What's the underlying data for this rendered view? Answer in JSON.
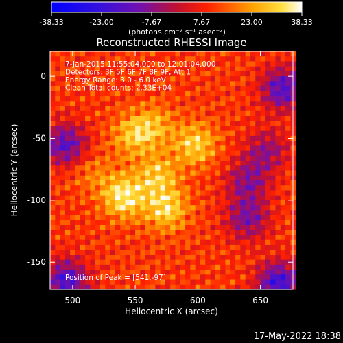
{
  "chart_data": {
    "type": "heatmap",
    "title": "Reconstructed RHESSI Image",
    "xlabel": "Heliocentric X (arcsec)",
    "ylabel": "Heliocentric Y (arcsec)",
    "xlim": [
      482,
      676
    ],
    "ylim": [
      -172,
      20
    ],
    "x_ticks": [
      {
        "value": 500,
        "label": "500"
      },
      {
        "value": 550,
        "label": "550"
      },
      {
        "value": 600,
        "label": "600"
      },
      {
        "value": 650,
        "label": "650"
      }
    ],
    "y_ticks": [
      {
        "value": 0,
        "label": "0"
      },
      {
        "value": -50,
        "label": "-50"
      },
      {
        "value": -100,
        "label": "-100"
      },
      {
        "value": -150,
        "label": "-150"
      }
    ],
    "colorbar": {
      "range": [
        -38.33,
        38.33
      ],
      "ticks": [
        "-38.33",
        "-23.00",
        "-7.67",
        "7.67",
        "23.00",
        "38.33"
      ],
      "unit_label": "(photons cm⁻² s⁻¹ asec⁻²)"
    },
    "annotations": [
      "7-Jan-2015 11:55:04.000 to 12:01:04.000",
      "Detectors: 3F 5F 6F 7F 8F 9F, Att 1",
      "Energy Range: 3.0 - 6.0 keV",
      "Clean     Total counts: 2.33E+04"
    ],
    "peak": {
      "label": "Position of Peak = [541,-97]",
      "x": 541,
      "y": -97
    },
    "bright_sources": [
      {
        "x": 541,
        "y": -97,
        "value": 38.33
      },
      {
        "x": 575,
        "y": -107,
        "value": 34
      },
      {
        "x": 598,
        "y": -55,
        "value": 33
      },
      {
        "x": 568,
        "y": -80,
        "value": 30
      },
      {
        "x": 548,
        "y": -48,
        "value": 29
      },
      {
        "x": 565,
        "y": -40,
        "value": 26
      },
      {
        "x": 517,
        "y": -78,
        "value": 20
      }
    ],
    "dark_regions": [
      {
        "x": 494,
        "y": -55,
        "value": -18
      },
      {
        "x": 668,
        "y": -10,
        "value": -20
      },
      {
        "x": 495,
        "y": -165,
        "value": -22
      },
      {
        "x": 665,
        "y": -167,
        "value": -25
      },
      {
        "x": 640,
        "y": -115,
        "value": -12
      },
      {
        "x": 640,
        "y": -85,
        "value": -10
      },
      {
        "x": 655,
        "y": -60,
        "value": -8
      }
    ]
  },
  "footer": {
    "timestamp": "17-May-2022 18:38"
  }
}
